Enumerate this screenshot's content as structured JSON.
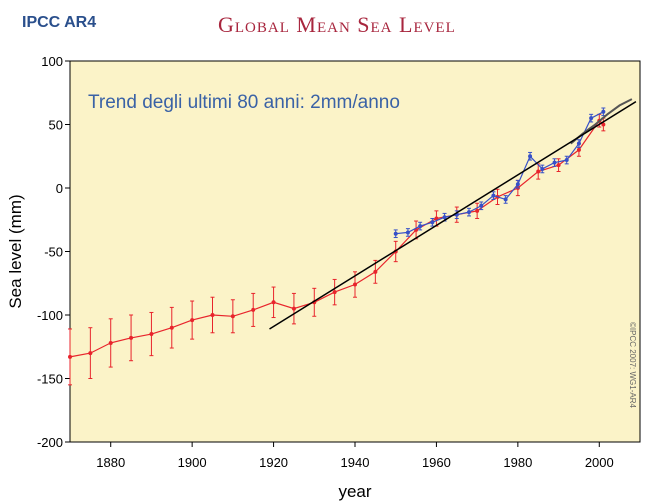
{
  "corner_label": "IPCC AR4",
  "chart_data": {
    "type": "line",
    "title": "Global Mean Sea Level",
    "xlabel": "year",
    "ylabel": "Sea level (mm)",
    "xlim": [
      1870,
      2010
    ],
    "ylim": [
      -200,
      100
    ],
    "x_ticks": [
      1880,
      1900,
      1920,
      1940,
      1960,
      1980,
      2000
    ],
    "y_ticks": [
      -200,
      -150,
      -100,
      -50,
      0,
      50,
      100
    ],
    "annotation": "Trend degli ultimi 80 anni: 2mm/anno",
    "copyright": "©IPCC 2007: WG1-AR4",
    "colors": {
      "background": "#fbf3c8",
      "reconstruction": "#e8242c",
      "tide_gauge": "#3650c8",
      "altimetry": "#555555",
      "trend": "#000000"
    },
    "series": [
      {
        "style": "reconstruction",
        "x": [
          1870,
          1875,
          1880,
          1885,
          1890,
          1895,
          1900,
          1905,
          1910,
          1915,
          1920,
          1925,
          1930,
          1935,
          1940,
          1945,
          1950,
          1955,
          1960,
          1965,
          1970,
          1975,
          1980,
          1985,
          1990,
          1995,
          2000,
          2001
        ],
        "y": [
          -133,
          -130,
          -122,
          -118,
          -115,
          -110,
          -104,
          -100,
          -101,
          -96,
          -90,
          -95,
          -90,
          -82,
          -76,
          -66,
          -50,
          -33,
          -24,
          -21,
          -18,
          -7,
          0,
          13,
          18,
          30,
          53,
          50
        ],
        "err": [
          22,
          20,
          19,
          18,
          17,
          16,
          15,
          14,
          13,
          13,
          12,
          12,
          11,
          10,
          10,
          9,
          8,
          7,
          6,
          6,
          6,
          6,
          6,
          6,
          5,
          5,
          5,
          5
        ]
      },
      {
        "style": "tide_gauge",
        "x": [
          1950,
          1953,
          1956,
          1959,
          1962,
          1965,
          1968,
          1971,
          1974,
          1977,
          1980,
          1983,
          1986,
          1989,
          1992,
          1995,
          1998,
          2001
        ],
        "y": [
          -36,
          -35,
          -30,
          -27,
          -23,
          -21,
          -19,
          -14,
          -6,
          -9,
          3,
          25,
          15,
          20,
          22,
          35,
          55,
          60
        ],
        "err": [
          3,
          3,
          3,
          3,
          3,
          3,
          3,
          3,
          3,
          3,
          3,
          3,
          3,
          3,
          3,
          3,
          3,
          3
        ]
      },
      {
        "style": "altimetry",
        "x": [
          1993,
          1996,
          1999,
          2002,
          2005,
          2008
        ],
        "y": [
          35,
          43,
          50,
          58,
          65,
          70
        ]
      }
    ],
    "trend": {
      "x": [
        1919,
        2009
      ],
      "y": [
        -111,
        68
      ]
    }
  }
}
